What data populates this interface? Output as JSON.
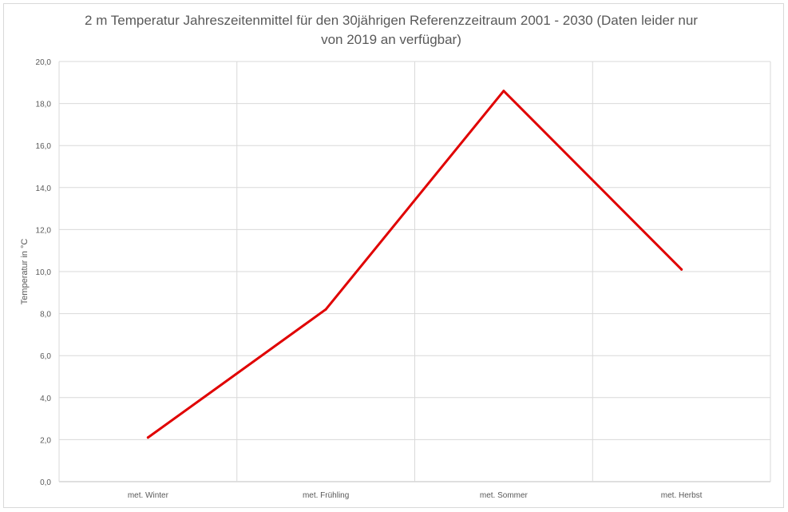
{
  "chart_data": {
    "type": "line",
    "title": "2 m Temperatur Jahreszeitenmittel für den 30jährigen Referenzzeitraum 2001 - 2030 (Daten leider nur von 2019 an verfügbar)",
    "xlabel": "",
    "ylabel": "Temperatur  in °C",
    "categories": [
      "met. Winter",
      "met. Frühling",
      "met. Sommer",
      "met. Herbst"
    ],
    "y_tick_labels": [
      "0,0",
      "2,0",
      "4,0",
      "6,0",
      "8,0",
      "10,0",
      "12,0",
      "14,0",
      "16,0",
      "18,0",
      "20,0"
    ],
    "ylim": [
      0,
      20
    ],
    "grid": true,
    "series": [
      {
        "values": [
          2.1,
          8.2,
          18.6,
          10.1
        ],
        "color": "#e00000"
      }
    ]
  }
}
